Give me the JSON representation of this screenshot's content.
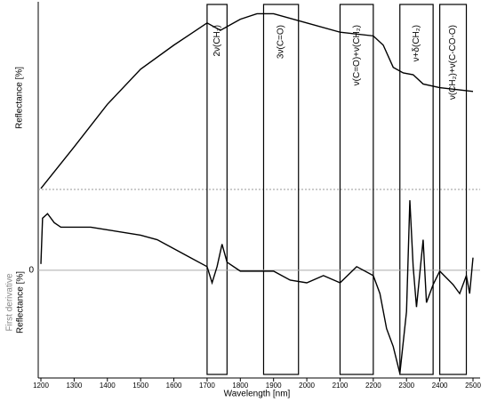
{
  "chart_data": [
    {
      "type": "line",
      "ylabel": "Reflectance [%]",
      "x": [
        1200,
        1300,
        1400,
        1500,
        1600,
        1650,
        1700,
        1740,
        1800,
        1850,
        1900,
        2000,
        2100,
        2200,
        2230,
        2260,
        2290,
        2320,
        2350,
        2400,
        2500
      ],
      "series": [
        {
          "color": "#000000",
          "values": [
            0.5,
            23,
            46,
            65,
            78,
            84,
            90,
            86,
            92,
            95,
            95,
            90,
            85,
            83,
            78,
            66,
            63,
            62,
            57,
            55,
            53
          ]
        }
      ],
      "xlim": [
        1200,
        2500
      ],
      "ylim": [
        0,
        100
      ],
      "bands": [
        {
          "label": "2ν(CH₂)",
          "start": 1700,
          "end": 1760
        },
        {
          "label": "3ν(C=O)",
          "start": 1870,
          "end": 1975
        },
        {
          "label": "ν(C=O)+ν(CH₂)",
          "start": 2100,
          "end": 2200
        },
        {
          "label": "ν+δ(CH₂)",
          "start": 2280,
          "end": 2380
        },
        {
          "label": "ν(CH₂)+ν(C-CO-O)",
          "start": 2400,
          "end": 2480
        }
      ]
    },
    {
      "type": "line",
      "ylabel_note": "First derivative",
      "ylabel": "Reflectance [%]",
      "xlabel": "Wavelength [nm]",
      "x": [
        1200,
        1205,
        1220,
        1240,
        1260,
        1300,
        1350,
        1400,
        1450,
        1500,
        1550,
        1600,
        1650,
        1700,
        1715,
        1730,
        1745,
        1760,
        1800,
        1850,
        1900,
        1950,
        2000,
        2050,
        2100,
        2150,
        2200,
        2220,
        2240,
        2260,
        2280,
        2300,
        2310,
        2320,
        2330,
        2350,
        2360,
        2380,
        2400,
        2440,
        2460,
        2480,
        2490,
        2500
      ],
      "series": [
        {
          "color": "#000000",
          "values": [
            0.07,
            0.58,
            0.63,
            0.53,
            0.48,
            0.48,
            0.48,
            0.45,
            0.42,
            0.39,
            0.34,
            0.24,
            0.14,
            0.04,
            -0.14,
            0.04,
            0.29,
            0.09,
            -0.01,
            -0.01,
            -0.01,
            -0.11,
            -0.14,
            -0.06,
            -0.14,
            0.04,
            -0.06,
            -0.26,
            -0.65,
            -0.85,
            -1.15,
            -0.46,
            0.78,
            0.04,
            -0.41,
            0.34,
            -0.36,
            -0.16,
            -0.01,
            -0.16,
            -0.26,
            -0.06,
            -0.26,
            0.14
          ]
        }
      ],
      "xlim": [
        1200,
        2500
      ],
      "ylim": [
        -1.2,
        0.9
      ],
      "yticks": [
        0
      ],
      "xticks": [
        1200,
        1300,
        1400,
        1500,
        1600,
        1700,
        1800,
        1900,
        2000,
        2100,
        2200,
        2300,
        2400,
        2500
      ]
    }
  ]
}
